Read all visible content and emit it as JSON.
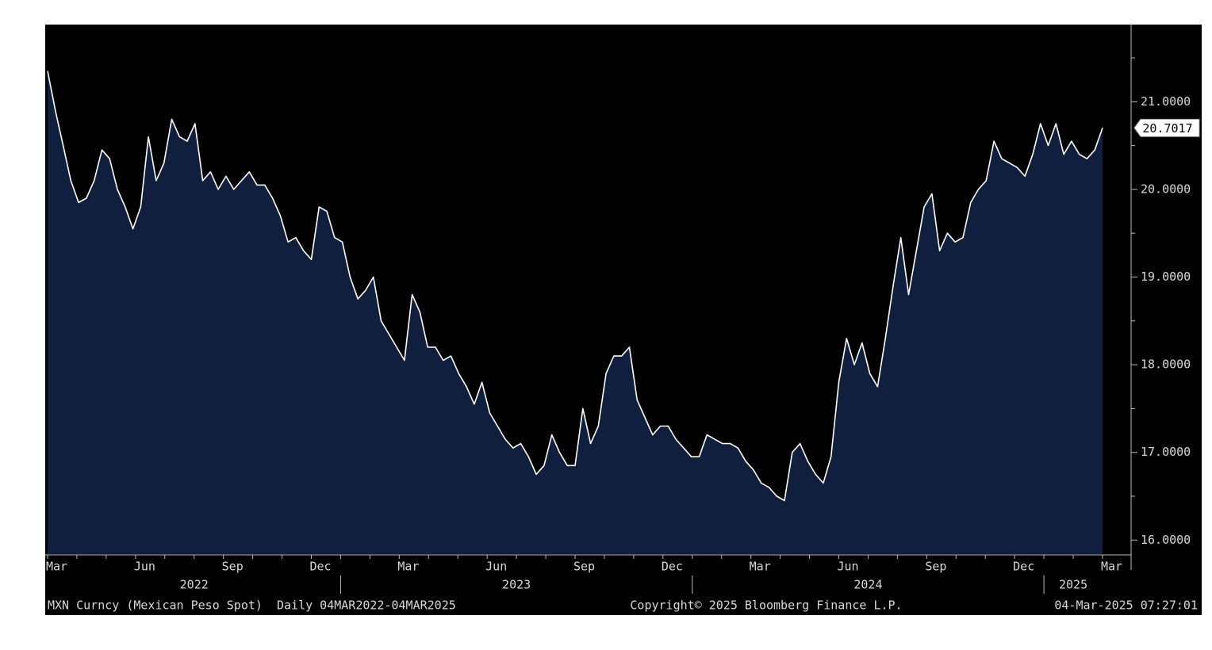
{
  "chart_data": {
    "type": "area",
    "values": [
      21.35,
      20.9,
      20.5,
      20.1,
      19.85,
      19.9,
      20.1,
      20.45,
      20.35,
      20.0,
      19.8,
      19.55,
      19.8,
      20.6,
      20.1,
      20.3,
      20.8,
      20.6,
      20.55,
      20.75,
      20.1,
      20.2,
      20.0,
      20.15,
      20.0,
      20.1,
      20.2,
      20.05,
      20.05,
      19.9,
      19.7,
      19.4,
      19.45,
      19.3,
      19.2,
      19.8,
      19.75,
      19.45,
      19.4,
      19.0,
      18.75,
      18.85,
      19.0,
      18.5,
      18.35,
      18.2,
      18.05,
      18.8,
      18.6,
      18.2,
      18.2,
      18.05,
      18.1,
      17.9,
      17.75,
      17.55,
      17.8,
      17.45,
      17.3,
      17.15,
      17.05,
      17.1,
      16.95,
      16.75,
      16.85,
      17.2,
      17.0,
      16.85,
      16.85,
      17.5,
      17.1,
      17.3,
      17.9,
      18.1,
      18.1,
      18.2,
      17.6,
      17.4,
      17.2,
      17.3,
      17.3,
      17.15,
      17.05,
      16.95,
      16.95,
      17.2,
      17.15,
      17.1,
      17.1,
      17.05,
      16.9,
      16.8,
      16.65,
      16.6,
      16.5,
      16.45,
      17.0,
      17.1,
      16.9,
      16.75,
      16.65,
      16.95,
      17.8,
      18.3,
      18.0,
      18.25,
      17.9,
      17.75,
      18.3,
      18.9,
      19.45,
      18.8,
      19.3,
      19.8,
      19.95,
      19.3,
      19.5,
      19.4,
      19.45,
      19.85,
      20.0,
      20.1,
      20.55,
      20.35,
      20.3,
      20.25,
      20.15,
      20.4,
      20.75,
      20.5,
      20.75,
      20.4,
      20.55,
      20.4,
      20.35,
      20.45,
      20.7017
    ],
    "line_color": "#ffffff",
    "fill_color": "#0f1f3d",
    "ylim": [
      15.84,
      21.88
    ],
    "yticks": [
      {
        "value": 16,
        "label": "16.0000"
      },
      {
        "value": 17,
        "label": "17.0000"
      },
      {
        "value": 18,
        "label": "18.0000"
      },
      {
        "value": 19,
        "label": "19.0000"
      },
      {
        "value": 20,
        "label": "20.0000"
      },
      {
        "value": 21,
        "label": "21.0000"
      }
    ],
    "months": [
      "Mar",
      "Jun",
      "Sep",
      "Dec",
      "Mar",
      "Jun",
      "Sep",
      "Dec",
      "Mar",
      "Jun",
      "Sep",
      "Dec",
      "Mar"
    ],
    "years": [
      "2022",
      "2023",
      "2024",
      "2025"
    ],
    "footer": {
      "left": "MXN Curncy (Mexican Peso Spot)  Daily 04MAR2022-04MAR2025",
      "center": "Copyright© 2025 Bloomberg Finance L.P.",
      "right": "04-Mar-2025 07:27:01"
    }
  }
}
